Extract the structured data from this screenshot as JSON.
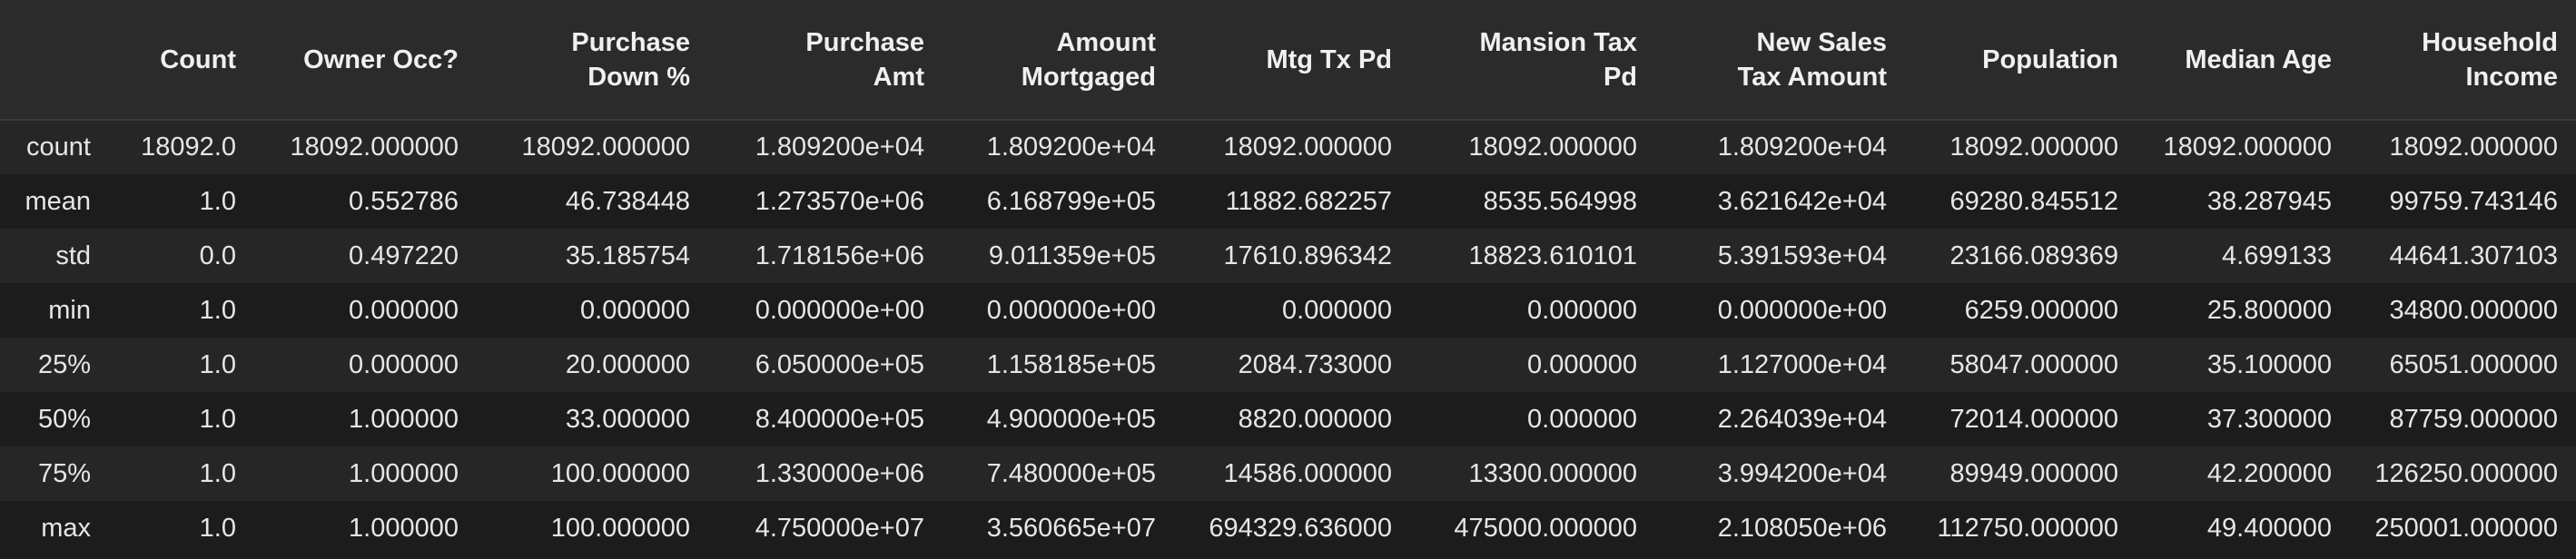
{
  "columns": [
    {
      "label": "Count"
    },
    {
      "label": "Owner Occ?"
    },
    {
      "label_line1": "Purchase",
      "label_line2": "Down %"
    },
    {
      "label_line1": "Purchase",
      "label_line2": "Amt"
    },
    {
      "label_line1": "Amount",
      "label_line2": "Mortgaged"
    },
    {
      "label": "Mtg Tx Pd"
    },
    {
      "label_line1": "Mansion Tax",
      "label_line2": "Pd"
    },
    {
      "label_line1": "New Sales",
      "label_line2": "Tax Amount"
    },
    {
      "label": "Population"
    },
    {
      "label": "Median Age"
    },
    {
      "label_line1": "Household",
      "label_line2": "Income"
    }
  ],
  "rows": [
    {
      "label": "count",
      "cells": [
        "18092.0",
        "18092.000000",
        "18092.000000",
        "1.809200e+04",
        "1.809200e+04",
        "18092.000000",
        "18092.000000",
        "1.809200e+04",
        "18092.000000",
        "18092.000000",
        "18092.000000"
      ]
    },
    {
      "label": "mean",
      "cells": [
        "1.0",
        "0.552786",
        "46.738448",
        "1.273570e+06",
        "6.168799e+05",
        "11882.682257",
        "8535.564998",
        "3.621642e+04",
        "69280.845512",
        "38.287945",
        "99759.743146"
      ]
    },
    {
      "label": "std",
      "cells": [
        "0.0",
        "0.497220",
        "35.185754",
        "1.718156e+06",
        "9.011359e+05",
        "17610.896342",
        "18823.610101",
        "5.391593e+04",
        "23166.089369",
        "4.699133",
        "44641.307103"
      ]
    },
    {
      "label": "min",
      "cells": [
        "1.0",
        "0.000000",
        "0.000000",
        "0.000000e+00",
        "0.000000e+00",
        "0.000000",
        "0.000000",
        "0.000000e+00",
        "6259.000000",
        "25.800000",
        "34800.000000"
      ]
    },
    {
      "label": "25%",
      "cells": [
        "1.0",
        "0.000000",
        "20.000000",
        "6.050000e+05",
        "1.158185e+05",
        "2084.733000",
        "0.000000",
        "1.127000e+04",
        "58047.000000",
        "35.100000",
        "65051.000000"
      ]
    },
    {
      "label": "50%",
      "cells": [
        "1.0",
        "1.000000",
        "33.000000",
        "8.400000e+05",
        "4.900000e+05",
        "8820.000000",
        "0.000000",
        "2.264039e+04",
        "72014.000000",
        "37.300000",
        "87759.000000"
      ]
    },
    {
      "label": "75%",
      "cells": [
        "1.0",
        "1.000000",
        "100.000000",
        "1.330000e+06",
        "7.480000e+05",
        "14586.000000",
        "13300.000000",
        "3.994200e+04",
        "89949.000000",
        "42.200000",
        "126250.000000"
      ]
    },
    {
      "label": "max",
      "cells": [
        "1.0",
        "1.000000",
        "100.000000",
        "4.750000e+07",
        "3.560665e+07",
        "694329.636000",
        "475000.000000",
        "2.108050e+06",
        "112750.000000",
        "49.400000",
        "250001.000000"
      ]
    }
  ]
}
